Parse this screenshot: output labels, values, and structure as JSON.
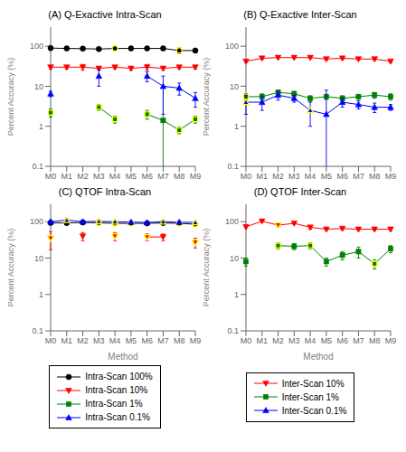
{
  "chart_data": [
    {
      "type": "line",
      "title": "(A) Q-Exactive Intra-Scan",
      "categories": [
        "M0",
        "M1",
        "M2",
        "M3",
        "M4",
        "M5",
        "M6",
        "M7",
        "M8",
        "M9"
      ],
      "log": "y",
      "ylim": [
        0.1,
        300
      ],
      "yticks": [
        0.1,
        1,
        10,
        100
      ],
      "ylabel": "Percent Accuracy (%)",
      "grid": false,
      "legend": "bottom",
      "highlight_color": "yellow",
      "series": [
        {
          "name": "Intra-Scan 100%",
          "color": "black",
          "marker": "circle",
          "values": [
            90,
            88,
            87,
            85,
            88,
            88,
            88,
            88,
            78,
            78
          ],
          "errors": [
            3,
            3,
            3,
            3,
            5,
            3,
            3,
            3,
            12,
            8
          ],
          "highlight": [
            false,
            false,
            false,
            false,
            true,
            false,
            false,
            false,
            true,
            false
          ]
        },
        {
          "name": "Intra-Scan 10%",
          "color": "red",
          "marker": "triangle-down",
          "values": [
            30,
            30,
            30,
            28,
            30,
            28,
            30,
            28,
            30,
            30
          ],
          "errors": [
            3,
            3,
            5,
            3,
            3,
            3,
            5,
            3,
            3,
            3
          ],
          "highlight": [
            false,
            false,
            false,
            false,
            false,
            false,
            false,
            false,
            false,
            false
          ]
        },
        {
          "name": "Intra-Scan 1%",
          "color": "green",
          "marker": "square",
          "values": [
            2.2,
            null,
            null,
            3.0,
            1.5,
            null,
            2.0,
            1.4,
            0.8,
            1.5
          ],
          "errors": [
            0.5,
            null,
            null,
            0.5,
            0.3,
            null,
            0.5,
            8.0,
            0.15,
            0.3
          ],
          "highlight": [
            true,
            false,
            false,
            true,
            true,
            false,
            true,
            false,
            true,
            true
          ]
        },
        {
          "name": "Intra-Scan 0.1%",
          "color": "blue",
          "marker": "triangle-up",
          "values": [
            6.5,
            null,
            null,
            18,
            null,
            null,
            18,
            10,
            9,
            5
          ],
          "errors": [
            1.0,
            null,
            null,
            8,
            null,
            null,
            5,
            8,
            3,
            2
          ],
          "highlight": [
            false,
            false,
            false,
            false,
            false,
            false,
            false,
            false,
            false,
            false
          ]
        }
      ]
    },
    {
      "type": "line",
      "title": "(B) Q-Exactive Inter-Scan",
      "categories": [
        "M0",
        "M1",
        "M2",
        "M3",
        "M4",
        "M5",
        "M6",
        "M7",
        "M8",
        "M9"
      ],
      "log": "y",
      "ylim": [
        0.1,
        300
      ],
      "yticks": [
        0.1,
        1,
        10,
        100
      ],
      "ylabel": "Percent Accuracy (%)",
      "grid": false,
      "legend": "bottom",
      "highlight_color": "yellow",
      "series": [
        {
          "name": "Inter-Scan 10%",
          "color": "red",
          "marker": "triangle-down",
          "values": [
            42,
            50,
            52,
            52,
            52,
            48,
            50,
            48,
            48,
            42
          ],
          "errors": [
            3,
            3,
            3,
            3,
            3,
            3,
            3,
            3,
            3,
            3
          ],
          "highlight": [
            false,
            false,
            false,
            false,
            false,
            false,
            false,
            false,
            false,
            false
          ]
        },
        {
          "name": "Inter-Scan 1%",
          "color": "green",
          "marker": "square",
          "values": [
            5.5,
            5.5,
            7.0,
            6.5,
            5.0,
            5.5,
            5.0,
            5.5,
            6.0,
            5.5
          ],
          "errors": [
            1.0,
            1.0,
            1.0,
            1.0,
            0.8,
            0.8,
            0.8,
            0.8,
            1.0,
            1.0
          ],
          "highlight": [
            true,
            false,
            false,
            false,
            false,
            false,
            false,
            false,
            false,
            false
          ]
        },
        {
          "name": "Inter-Scan 0.1%",
          "color": "blue",
          "marker": "triangle-up",
          "values": [
            4.0,
            4.0,
            6.0,
            5.0,
            2.5,
            2.0,
            4.0,
            3.5,
            3.0,
            3.0
          ],
          "errors": [
            2.0,
            1.5,
            1.5,
            1.0,
            1.5,
            6.0,
            1.0,
            0.8,
            0.8,
            0.5
          ],
          "highlight": [
            true,
            false,
            false,
            false,
            true,
            false,
            false,
            false,
            false,
            false
          ]
        }
      ]
    },
    {
      "type": "line",
      "title": "(C) QTOF Intra-Scan",
      "categories": [
        "M0",
        "M1",
        "M2",
        "M3",
        "M4",
        "M5",
        "M6",
        "M7",
        "M8",
        "M9"
      ],
      "log": "y",
      "ylim": [
        0.1,
        300
      ],
      "yticks": [
        0.1,
        1,
        10,
        100
      ],
      "ylabel": "Percent Accuracy (%)",
      "xlabel": "Method",
      "grid": false,
      "highlight_color": "yellow",
      "series": [
        {
          "name": "Intra-Scan 100%",
          "color": "black",
          "marker": "circle",
          "values": [
            93,
            92,
            95,
            93,
            90,
            90,
            90,
            92,
            90,
            85
          ],
          "errors": [
            5,
            5,
            5,
            5,
            5,
            5,
            5,
            5,
            8,
            5
          ],
          "highlight": [
            false,
            false,
            false,
            true,
            true,
            true,
            false,
            false,
            true,
            true
          ]
        },
        {
          "name": "Intra-Scan 10%",
          "color": "red",
          "marker": "triangle-down",
          "values": [
            35,
            null,
            40,
            null,
            40,
            null,
            38,
            38,
            null,
            27
          ],
          "errors": [
            18,
            null,
            10,
            null,
            10,
            null,
            8,
            8,
            null,
            8
          ],
          "highlight": [
            true,
            false,
            false,
            false,
            true,
            false,
            true,
            false,
            false,
            true
          ]
        },
        {
          "name": "Intra-Scan 0.1%",
          "color": "blue",
          "marker": "triangle-up",
          "values": [
            100,
            110,
            100,
            102,
            100,
            98,
            95,
            100,
            97,
            95
          ],
          "errors": [
            8,
            10,
            8,
            8,
            5,
            5,
            5,
            5,
            5,
            5
          ],
          "highlight": [
            false,
            true,
            false,
            true,
            true,
            false,
            false,
            true,
            false,
            true
          ]
        }
      ]
    },
    {
      "type": "line",
      "title": "(D) QTOF Inter-Scan",
      "categories": [
        "M0",
        "M1",
        "M2",
        "M3",
        "M4",
        "M5",
        "M6",
        "M7",
        "M8",
        "M9"
      ],
      "log": "y",
      "ylim": [
        0.1,
        300
      ],
      "yticks": [
        0.1,
        1,
        10,
        100
      ],
      "ylabel": "Percent Accuracy (%)",
      "xlabel": "Method",
      "grid": false,
      "highlight_color": "yellow",
      "series": [
        {
          "name": "Inter-Scan 10%",
          "color": "red",
          "marker": "triangle-down",
          "values": [
            72,
            103,
            80,
            90,
            70,
            62,
            65,
            62,
            62,
            62
          ],
          "errors": [
            5,
            5,
            8,
            5,
            8,
            5,
            5,
            5,
            5,
            5
          ],
          "highlight": [
            false,
            false,
            true,
            false,
            false,
            false,
            false,
            false,
            false,
            false
          ]
        },
        {
          "name": "Inter-Scan 1%",
          "color": "green",
          "marker": "square",
          "values": [
            8,
            null,
            22,
            21,
            22,
            8,
            12,
            15,
            7,
            18
          ],
          "errors": [
            2,
            null,
            4,
            4,
            4,
            2,
            3,
            5,
            2,
            4
          ],
          "highlight": [
            false,
            false,
            true,
            false,
            true,
            false,
            false,
            false,
            true,
            false
          ]
        }
      ]
    }
  ]
}
